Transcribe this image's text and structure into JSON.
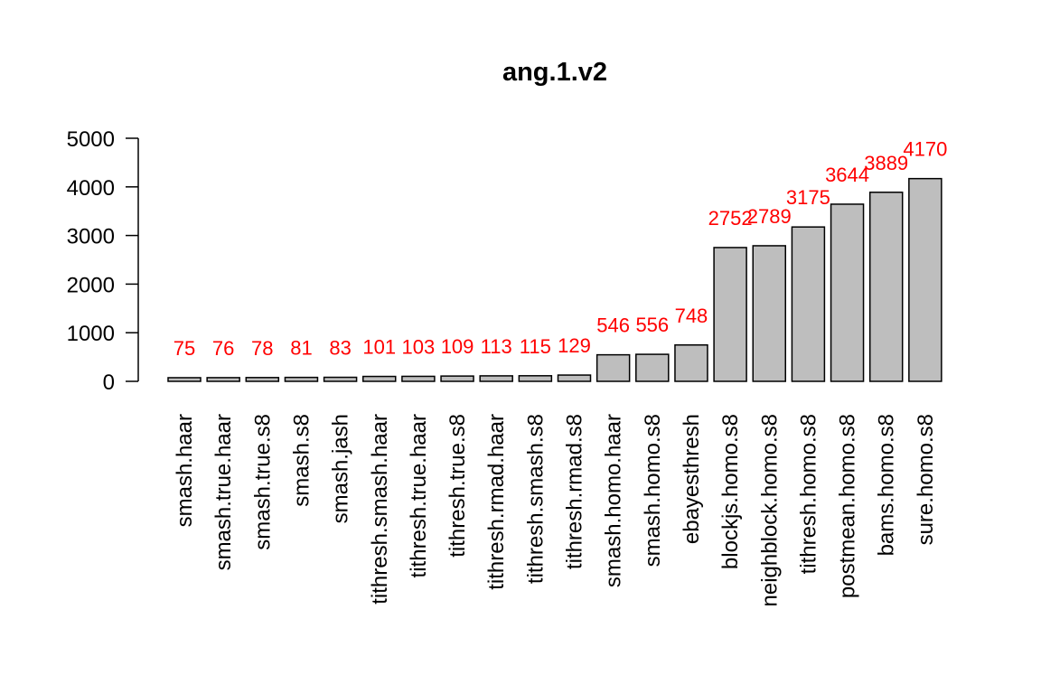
{
  "chart_data": {
    "type": "bar",
    "title": "ang.1.v2",
    "xlabel": "",
    "ylabel": "",
    "ylim": [
      0,
      5000
    ],
    "yticks": [
      "0",
      "1000",
      "2000",
      "3000",
      "4000",
      "5000"
    ],
    "categories": [
      "smash.haar",
      "smash.true.haar",
      "smash.true.s8",
      "smash.s8",
      "smash.jash",
      "tithresh.smash.haar",
      "tithresh.true.haar",
      "tithresh.true.s8",
      "tithresh.rmad.haar",
      "tithresh.smash.s8",
      "tithresh.rmad.s8",
      "smash.homo.haar",
      "smash.homo.s8",
      "ebayesthresh",
      "blockjs.homo.s8",
      "neighblock.homo.s8",
      "tithresh.homo.s8",
      "postmean.homo.s8",
      "bams.homo.s8",
      "sure.homo.s8"
    ],
    "values": [
      75,
      76,
      78,
      81,
      83,
      101,
      103,
      109,
      113,
      115,
      129,
      546,
      556,
      748,
      2752,
      2789,
      3175,
      3644,
      3889,
      4170
    ],
    "data_labels": [
      "75",
      "76",
      "78",
      "81",
      "83",
      "101",
      "103",
      "109",
      "113",
      "115",
      "129",
      "546",
      "556",
      "748",
      "2752",
      "2789",
      "3175",
      "3644",
      "3889",
      "4170"
    ],
    "grid": false,
    "legend": "none",
    "colors": {
      "bar_fill": "#bebebe",
      "bar_stroke": "#000000",
      "data_label": "#ff0000",
      "axis": "#000000"
    }
  }
}
